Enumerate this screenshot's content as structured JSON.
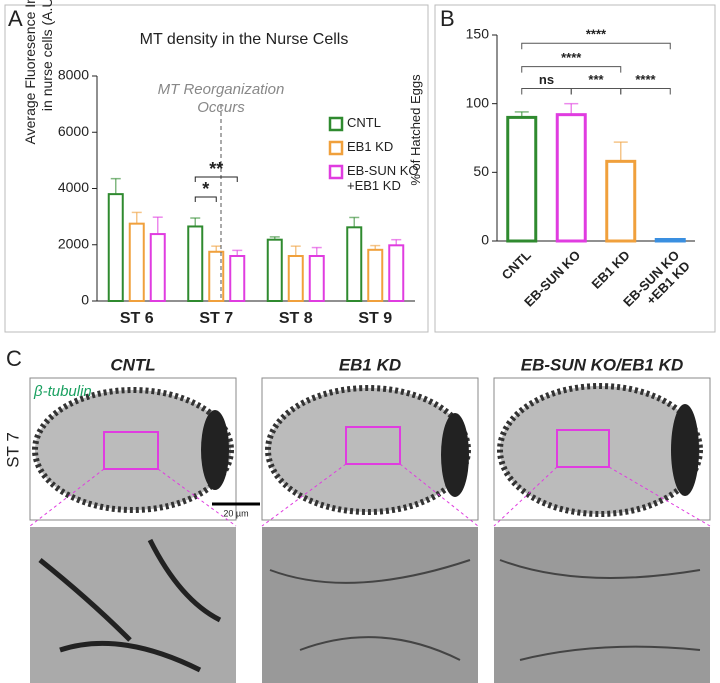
{
  "chart_data": [
    {
      "type": "bar",
      "panel": "A",
      "title": "MT density in the Nurse Cells",
      "ylabel": "Average Fluoresence Intensity in nurse cells (A.U.)",
      "annotation": "MT Reorganization Occurs",
      "categories": [
        "ST 6",
        "ST 7",
        "ST 8",
        "ST 9"
      ],
      "series": [
        {
          "name": "CNTL",
          "color": "#2f8a2f",
          "values": [
            3800,
            2650,
            2180,
            2620
          ],
          "errors": [
            550,
            300,
            100,
            350
          ]
        },
        {
          "name": "EB1 KD",
          "color": "#f0a03c",
          "values": [
            2750,
            1750,
            1600,
            1820
          ],
          "errors": [
            400,
            200,
            350,
            150
          ]
        },
        {
          "name": "EB-SUN KO +EB1 KD",
          "color": "#e03ce0",
          "values": [
            2380,
            1600,
            1600,
            1980
          ],
          "errors": [
            600,
            200,
            300,
            200
          ]
        }
      ],
      "comparisons": [
        {
          "label": "*",
          "group": 1,
          "from": 0,
          "to": 1
        },
        {
          "label": "**",
          "group": 1,
          "from": 0,
          "to": 2
        }
      ],
      "ylim": [
        0,
        8000
      ],
      "yticks": [
        0,
        2000,
        4000,
        6000,
        8000
      ],
      "legend": "upper right"
    },
    {
      "type": "bar",
      "panel": "B",
      "ylabel": "% of Hatched Eggs",
      "categories": [
        "CNTL",
        "EB-SUN KO",
        "EB1 KD",
        "EB-SUN KO +EB1 KD"
      ],
      "values": [
        90,
        92,
        58,
        1
      ],
      "errors": [
        4,
        8,
        14,
        0
      ],
      "colors": [
        "#2f8a2f",
        "#e03ce0",
        "#f0a03c",
        "#3a8fe0"
      ],
      "comparisons": [
        {
          "label": "ns",
          "from": 0,
          "to": 1
        },
        {
          "label": "***",
          "from": 1,
          "to": 2
        },
        {
          "label": "****",
          "from": 2,
          "to": 3
        },
        {
          "label": "****",
          "from": 0,
          "to": 2
        },
        {
          "label": "****",
          "from": 0,
          "to": 3
        }
      ],
      "ylim": [
        0,
        150
      ],
      "yticks": [
        0,
        50,
        100,
        150
      ]
    }
  ],
  "panel_c": {
    "letter": "C",
    "columns": [
      "CNTL",
      "EB1 KD",
      "EB-SUN KO/EB1 KD"
    ],
    "stain": "β-tubulin",
    "stage": "ST 7",
    "scale": "20 µm"
  }
}
